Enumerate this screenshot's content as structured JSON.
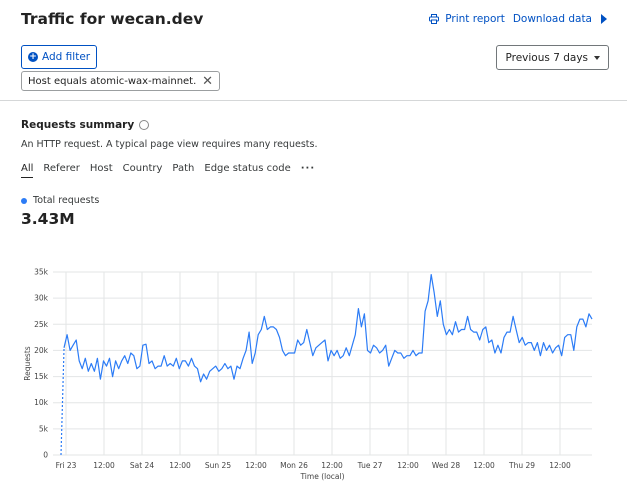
{
  "header": {
    "title": "Traffic for wecan.dev",
    "print_label": "Print report",
    "download_label": "Download data"
  },
  "filters": {
    "add_label": "Add filter",
    "period_label": "Previous 7 days",
    "chip_text": "Host equals atomic-wax-mainnet.weca..."
  },
  "summary": {
    "title": "Requests summary",
    "description": "An HTTP request. A typical page view requires many requests.",
    "tabs": [
      {
        "label": "All",
        "active": true
      },
      {
        "label": "Referer"
      },
      {
        "label": "Host"
      },
      {
        "label": "Country"
      },
      {
        "label": "Path"
      },
      {
        "label": "Edge status code"
      }
    ],
    "legend_label": "Total requests",
    "total_value": "3.43M"
  },
  "colors": {
    "accent": "#0051c3",
    "series": "#2c7cf6"
  },
  "chart_data": {
    "type": "line",
    "xlabel": "Time (local)",
    "ylabel": "Requests",
    "ylim": [
      0,
      35000
    ],
    "yticks": [
      "0",
      "5k",
      "10k",
      "15k",
      "20k",
      "25k",
      "30k",
      "35k"
    ],
    "xticks": [
      "Fri 23",
      "12:00",
      "Sat 24",
      "12:00",
      "Sun 25",
      "12:00",
      "Mon 26",
      "12:00",
      "Tue 27",
      "12:00",
      "Wed 28",
      "12:00",
      "Thu 29",
      "12:00"
    ],
    "grid": true,
    "series": [
      {
        "name": "Total requests",
        "values": [
          0,
          20500,
          23000,
          20000,
          21000,
          22000,
          18000,
          16500,
          18500,
          16000,
          17500,
          16000,
          18500,
          14500,
          18000,
          17000,
          18500,
          15000,
          18000,
          16500,
          18000,
          19000,
          17500,
          19500,
          19000,
          16500,
          17000,
          21000,
          21200,
          17500,
          18000,
          16500,
          17000,
          17000,
          19000,
          17000,
          17500,
          17000,
          18500,
          16500,
          18000,
          18000,
          17000,
          18500,
          17000,
          16500,
          14000,
          15500,
          14500,
          16000,
          16500,
          17000,
          16000,
          16500,
          17500,
          16500,
          17000,
          14500,
          17000,
          16500,
          18500,
          20000,
          23500,
          17500,
          19500,
          23000,
          24000,
          26500,
          24000,
          24500,
          24500,
          24000,
          22500,
          20000,
          19000,
          19500,
          19500,
          19500,
          22000,
          21000,
          21500,
          24000,
          21500,
          19000,
          20500,
          21000,
          21500,
          22000,
          18000,
          20000,
          19000,
          20000,
          18500,
          19000,
          20500,
          19000,
          21000,
          23000,
          28000,
          24500,
          27000,
          20000,
          19500,
          21000,
          20500,
          19500,
          20000,
          21000,
          17000,
          18500,
          20000,
          19500,
          19500,
          18500,
          19000,
          19000,
          20000,
          19000,
          19500,
          19500,
          27500,
          29500,
          34500,
          31000,
          26500,
          29500,
          25000,
          23000,
          24000,
          23000,
          25500,
          23500,
          24000,
          24000,
          26500,
          24000,
          23500,
          23500,
          22000,
          24000,
          24500,
          21500,
          22000,
          19500,
          21000,
          19500,
          22500,
          23500,
          23500,
          26500,
          24000,
          21500,
          22500,
          21000,
          21500,
          21500,
          20000,
          21500,
          19000,
          21500,
          20000,
          21000,
          19500,
          20500,
          21000,
          19000,
          22500,
          23000,
          23000,
          20000,
          24500,
          26000,
          26000,
          24500,
          27000,
          26000
        ]
      }
    ]
  }
}
